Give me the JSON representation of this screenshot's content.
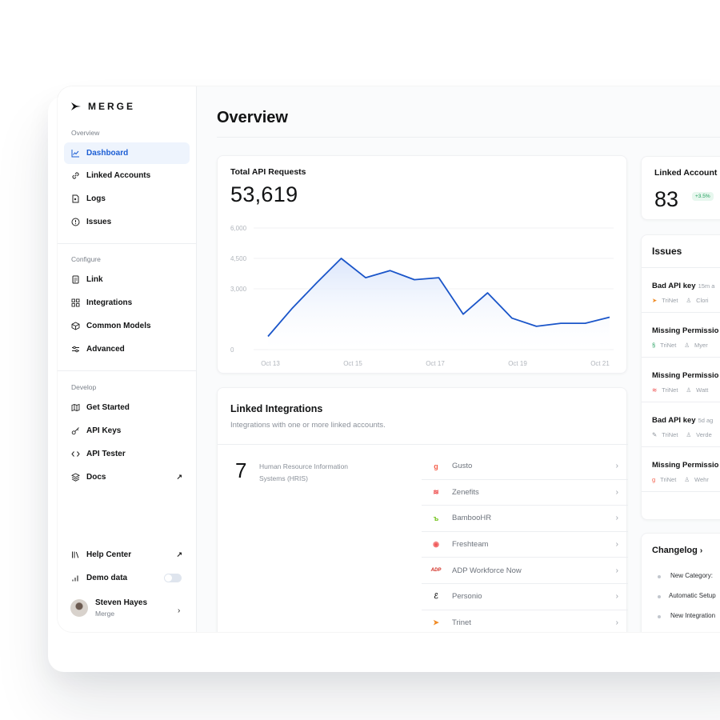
{
  "app": {
    "logo_text": "MERGE"
  },
  "sidebar": {
    "section_overview": "Overview",
    "section_configure": "Configure",
    "section_develop": "Develop",
    "items": [
      {
        "label": "Dashboard",
        "icon": "chart-line-icon"
      },
      {
        "label": "Linked Accounts",
        "icon": "link-icon"
      },
      {
        "label": "Logs",
        "icon": "logs-icon"
      },
      {
        "label": "Issues",
        "icon": "alert-circle-icon"
      },
      {
        "label": "Link",
        "icon": "document-icon"
      },
      {
        "label": "Integrations",
        "icon": "grid-icon"
      },
      {
        "label": "Common Models",
        "icon": "cube-icon"
      },
      {
        "label": "Advanced",
        "icon": "sliders-icon"
      },
      {
        "label": "Get Started",
        "icon": "map-icon"
      },
      {
        "label": "API Keys",
        "icon": "key-icon"
      },
      {
        "label": "API Tester",
        "icon": "code-icon"
      },
      {
        "label": "Docs",
        "icon": "layers-icon"
      }
    ],
    "help_center": "Help Center",
    "demo_data": "Demo data",
    "demo_data_enabled": false,
    "user": {
      "name": "Steven Hayes",
      "org": "Merge"
    }
  },
  "main": {
    "title": "Overview",
    "api_requests": {
      "label": "Total API Requests",
      "value": "53,619"
    },
    "linked_integrations": {
      "title": "Linked Integrations",
      "subtitle": "Integrations with one or more linked accounts.",
      "count": "7",
      "category": "Human Resource Information Systems (HRIS)",
      "items": [
        {
          "name": "Gusto",
          "glyph": "g",
          "color": "#f45d48"
        },
        {
          "name": "Zenefits",
          "glyph": "≋",
          "color": "#ee4b4b"
        },
        {
          "name": "BambooHR",
          "glyph": "ъ",
          "color": "#73c41d"
        },
        {
          "name": "Freshteam",
          "glyph": "◉",
          "color": "#f05a5a"
        },
        {
          "name": "ADP Workforce Now",
          "glyph": "ADP",
          "color": "#d0271d"
        },
        {
          "name": "Personio",
          "glyph": "ℰ",
          "color": "#222222"
        },
        {
          "name": "Trinet",
          "glyph": "➤",
          "color": "#f08a24"
        }
      ]
    },
    "linked_accounts": {
      "label": "Linked Account",
      "value": "83",
      "change": "+3.5%"
    },
    "issues": {
      "title": "Issues",
      "items": [
        {
          "title": "Bad API key",
          "time": "15m a",
          "integration": "TriNet",
          "person": "Clori"
        },
        {
          "title": "Missing Permissio",
          "time": "",
          "integration": "TriNet",
          "person": "Myer"
        },
        {
          "title": "Missing Permissio",
          "time": "",
          "integration": "TriNet",
          "person": "Watt"
        },
        {
          "title": "Bad API key",
          "time": "5d ag",
          "integration": "TriNet",
          "person": "Verde"
        },
        {
          "title": "Missing Permissio",
          "time": "",
          "integration": "TriNet",
          "person": "Wehr"
        }
      ]
    },
    "changelog": {
      "title": "Changelog",
      "items": [
        "New Category:",
        "Automatic Setup",
        "New Integration"
      ]
    }
  },
  "chart_data": {
    "type": "area",
    "title": "Total API Requests",
    "x_ticks": [
      "Oct 13",
      "Oct 15",
      "Oct 17",
      "Oct 19",
      "Oct 21"
    ],
    "y_ticks": [
      "6,000",
      "4,500",
      "3,000",
      "0"
    ],
    "ylim": [
      0,
      6000
    ],
    "x": [
      0,
      1,
      2,
      3,
      4,
      5,
      6,
      7,
      8,
      9,
      10,
      11,
      12,
      13,
      14
    ],
    "series": [
      {
        "values": [
          650,
          2050,
          3300,
          4500,
          3550,
          3900,
          3450,
          3550,
          1750,
          2800,
          1550,
          1150,
          1300,
          1300,
          1600
        ]
      }
    ],
    "grid": true,
    "colors": {
      "line": "#1a55c9",
      "fill_top": "#dbe6fb",
      "fill_bottom": "#ffffff"
    }
  }
}
